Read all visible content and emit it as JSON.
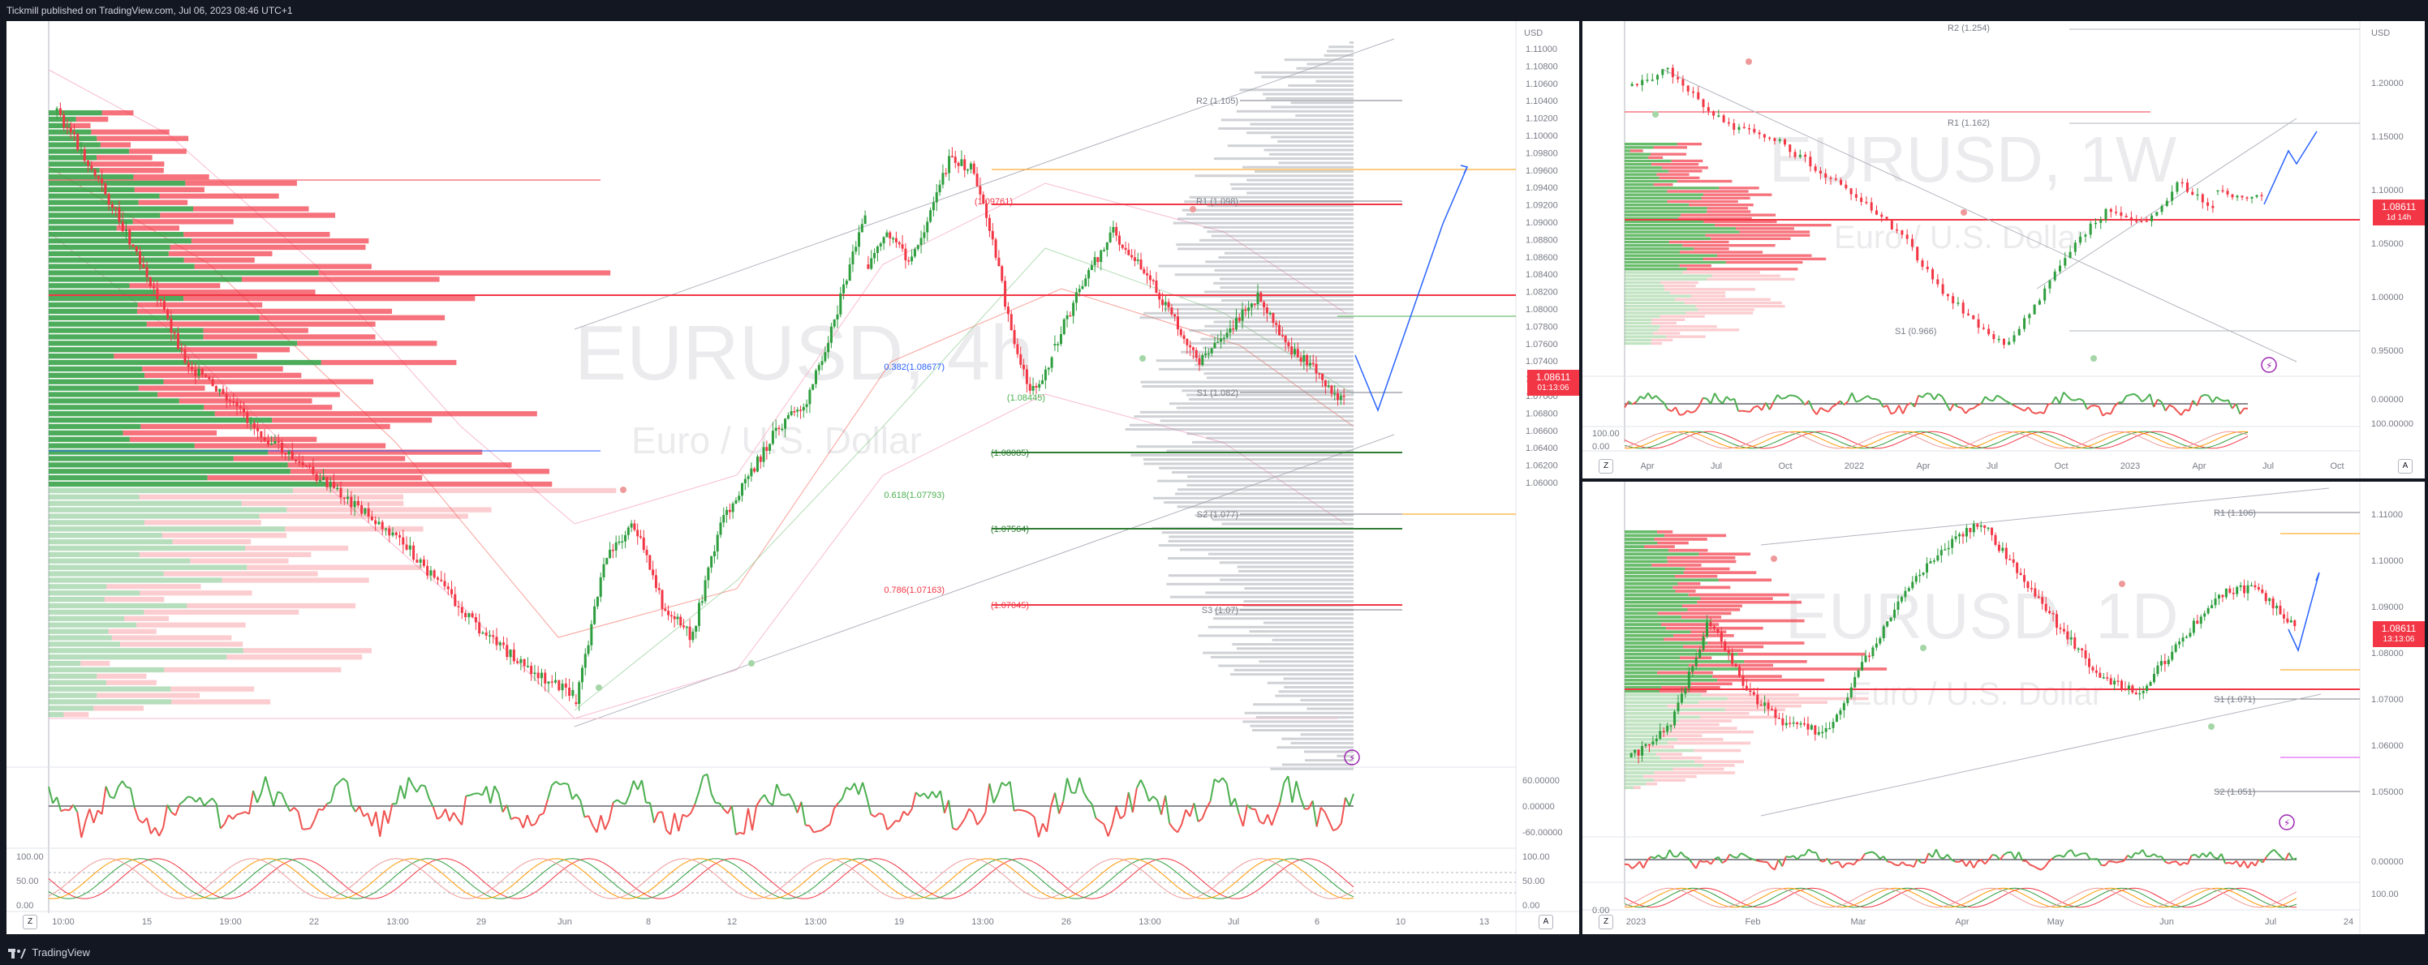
{
  "header": {
    "publisher": "Tickmill published on TradingView.com, Jul 06, 2023 08:46 UTC+1"
  },
  "footer": {
    "brand": "TradingView"
  },
  "colors": {
    "bull": "#26a69a",
    "bull_candle": "#2e9e3e",
    "bear": "#f23645",
    "accent": "#2962ff",
    "pivot_gray": "#787b86"
  },
  "main_chart": {
    "symbol": "EURUSD, 4h",
    "description": "Euro / U.S. Dollar",
    "currency": "USD",
    "price_tag": "1.08611",
    "countdown": "01:13:06",
    "price_ticks": [
      "1.11000",
      "1.10800",
      "1.10600",
      "1.10400",
      "1.10200",
      "1.10000",
      "1.09800",
      "1.09600",
      "1.09400",
      "1.09200",
      "1.09000",
      "1.08800",
      "1.08600",
      "1.08400",
      "1.08200",
      "1.08000",
      "1.07800",
      "1.07600",
      "1.07400",
      "1.07200",
      "1.07000",
      "1.06800",
      "1.06600",
      "1.06400",
      "1.06200",
      "1.06000"
    ],
    "time_ticks": [
      "10:00",
      "15",
      "19:00",
      "22",
      "13:00",
      "29",
      "Jun",
      "8",
      "12",
      "13:00",
      "19",
      "13:00",
      "26",
      "13:00",
      "Jul",
      "6",
      "10",
      "13"
    ],
    "pivots": [
      "R2 (1.105)",
      "R1 (1.098)",
      "S1 (1.082)",
      "S2 (1.077)",
      "S3 (1.07)"
    ],
    "fib_labels": [
      "0.382(1.08677)",
      "0.618(1.07793)",
      "0.786(1.07163)"
    ],
    "level_labels": [
      "(1.09761)",
      "(1.08445)",
      "(1.08085)",
      "(1.07564)",
      "(1.07045)"
    ],
    "osc1_ticks": [
      "60.00000",
      "0.00000",
      "-60.00000"
    ],
    "osc2_ticks": [
      "100.00",
      "50.00",
      "0.00"
    ],
    "btn_z": "Z",
    "btn_a": "A"
  },
  "weekly_chart": {
    "symbol": "EURUSD, 1W",
    "description": "Euro / U.S. Dollar",
    "currency": "USD",
    "price_tag": "1.08611",
    "countdown": "1d 14h",
    "price_ticks": [
      "1.20000",
      "1.15000",
      "1.10000",
      "1.05000",
      "1.00000",
      "0.95000"
    ],
    "osc1_ticks": [
      "0.00000",
      "100.00000"
    ],
    "osc2_ticks": [
      "100.00",
      "0.00"
    ],
    "time_ticks": [
      "Apr",
      "Jul",
      "Oct",
      "2022",
      "Apr",
      "Jul",
      "Oct",
      "2023",
      "Apr",
      "Jul",
      "Oct"
    ],
    "pivots": [
      "R2 (1.254)",
      "R1 (1.162)",
      "S1 (0.966)"
    ],
    "btn_z": "Z",
    "btn_a": "A"
  },
  "daily_chart": {
    "symbol": "EURUSD, 1D",
    "description": "Euro / U.S. Dollar",
    "price_tag": "1.08611",
    "countdown": "13:13:06",
    "price_ticks": [
      "1.11000",
      "1.10000",
      "1.09000",
      "1.08000",
      "1.07000",
      "1.06000",
      "1.05000"
    ],
    "osc1_ticks": [
      "0.00000"
    ],
    "osc2_ticks": [
      "100.00",
      "0.00"
    ],
    "time_ticks": [
      "2023",
      "Feb",
      "Mar",
      "Apr",
      "May",
      "Jun",
      "Jul",
      "24"
    ],
    "pivots": [
      "R1 (1.106)",
      "S1 (1.071)",
      "S2 (1.051)"
    ],
    "btn_z": "Z"
  }
}
